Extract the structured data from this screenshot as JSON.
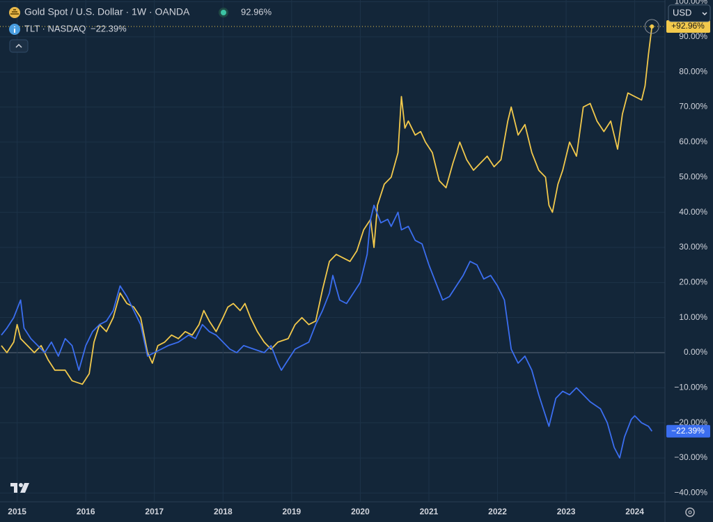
{
  "chart_data": {
    "type": "line",
    "currency": "USD",
    "series": [
      {
        "name": "Gold Spot / U.S. Dollar · 1W · OANDA",
        "color": "#f2c94c",
        "legend_value": "92.96%",
        "price_tag": "+92.96%",
        "x": [
          2014.77,
          2014.85,
          2014.95,
          2015.0,
          2015.05,
          2015.15,
          2015.25,
          2015.35,
          2015.45,
          2015.55,
          2015.7,
          2015.8,
          2015.95,
          2016.05,
          2016.12,
          2016.2,
          2016.3,
          2016.4,
          2016.5,
          2016.6,
          2016.7,
          2016.8,
          2016.9,
          2016.97,
          2017.05,
          2017.15,
          2017.25,
          2017.35,
          2017.45,
          2017.55,
          2017.65,
          2017.72,
          2017.8,
          2017.9,
          2018.0,
          2018.07,
          2018.15,
          2018.25,
          2018.32,
          2018.4,
          2018.5,
          2018.6,
          2018.7,
          2018.8,
          2018.95,
          2019.05,
          2019.15,
          2019.25,
          2019.35,
          2019.45,
          2019.55,
          2019.65,
          2019.75,
          2019.85,
          2019.95,
          2020.05,
          2020.15,
          2020.2,
          2020.25,
          2020.35,
          2020.45,
          2020.55,
          2020.6,
          2020.65,
          2020.7,
          2020.8,
          2020.88,
          2020.95,
          2021.05,
          2021.15,
          2021.25,
          2021.35,
          2021.45,
          2021.55,
          2021.65,
          2021.75,
          2021.85,
          2021.95,
          2022.05,
          2022.15,
          2022.2,
          2022.3,
          2022.4,
          2022.5,
          2022.6,
          2022.7,
          2022.75,
          2022.8,
          2022.88,
          2022.95,
          2023.05,
          2023.15,
          2023.25,
          2023.35,
          2023.45,
          2023.55,
          2023.65,
          2023.75,
          2023.82,
          2023.9,
          2024.0,
          2024.1,
          2024.15,
          2024.2,
          2024.25
        ],
        "values": [
          2,
          0,
          3,
          8,
          4,
          2,
          0,
          2,
          -2,
          -5,
          -5,
          -8,
          -9,
          -6,
          3,
          8,
          6,
          10,
          17,
          14,
          13,
          10,
          0,
          -3,
          2,
          3,
          5,
          4,
          6,
          5,
          8,
          12,
          9,
          6,
          10,
          13,
          14,
          12,
          14,
          10,
          6,
          3,
          1,
          3,
          4,
          8,
          10,
          8,
          9,
          18,
          26,
          28,
          27,
          26,
          29,
          35,
          38,
          30,
          42,
          48,
          50,
          57,
          73,
          64,
          66,
          62,
          63,
          60,
          57,
          49,
          47,
          54,
          60,
          55,
          52,
          54,
          56,
          53,
          55,
          66,
          70,
          62,
          65,
          57,
          52,
          50,
          42,
          40,
          48,
          52,
          60,
          56,
          70,
          71,
          66,
          63,
          66,
          58,
          68,
          74,
          73,
          72,
          76,
          85,
          92.96
        ]
      },
      {
        "name": "TLT · NASDAQ",
        "color": "#3b6ef0",
        "legend_value": "−22.39%",
        "price_tag": "−22.39%",
        "x": [
          2014.77,
          2014.85,
          2014.95,
          2015.05,
          2015.1,
          2015.2,
          2015.3,
          2015.4,
          2015.5,
          2015.6,
          2015.7,
          2015.8,
          2015.9,
          2016.0,
          2016.1,
          2016.2,
          2016.3,
          2016.4,
          2016.5,
          2016.6,
          2016.7,
          2016.8,
          2016.9,
          2017.0,
          2017.1,
          2017.2,
          2017.35,
          2017.5,
          2017.6,
          2017.7,
          2017.8,
          2017.9,
          2018.0,
          2018.1,
          2018.2,
          2018.3,
          2018.45,
          2018.6,
          2018.7,
          2018.8,
          2018.85,
          2018.95,
          2019.05,
          2019.15,
          2019.25,
          2019.35,
          2019.45,
          2019.55,
          2019.6,
          2019.7,
          2019.8,
          2019.9,
          2020.0,
          2020.1,
          2020.15,
          2020.2,
          2020.3,
          2020.4,
          2020.45,
          2020.55,
          2020.6,
          2020.7,
          2020.8,
          2020.9,
          2021.0,
          2021.1,
          2021.2,
          2021.3,
          2021.4,
          2021.5,
          2021.6,
          2021.7,
          2021.8,
          2021.9,
          2022.0,
          2022.1,
          2022.2,
          2022.3,
          2022.4,
          2022.5,
          2022.6,
          2022.75,
          2022.85,
          2022.95,
          2023.05,
          2023.15,
          2023.25,
          2023.35,
          2023.5,
          2023.6,
          2023.7,
          2023.78,
          2023.85,
          2023.95,
          2024.0,
          2024.1,
          2024.2,
          2024.25
        ],
        "values": [
          5,
          7,
          10,
          15,
          7,
          4,
          2,
          0,
          3,
          -1,
          4,
          2,
          -5,
          2,
          6,
          8,
          9,
          12,
          19,
          16,
          12,
          8,
          -1,
          0,
          1,
          2,
          3,
          5,
          4,
          8,
          6,
          5,
          3,
          1,
          0,
          2,
          1,
          0,
          2,
          -3,
          -5,
          -2,
          1,
          2,
          3,
          8,
          12,
          17,
          22,
          15,
          14,
          17,
          20,
          28,
          38,
          42,
          37,
          38,
          36,
          40,
          35,
          36,
          32,
          31,
          25,
          20,
          15,
          16,
          19,
          22,
          26,
          25,
          21,
          22,
          19,
          15,
          1,
          -3,
          -1,
          -5,
          -12,
          -21,
          -13,
          -11,
          -12,
          -10,
          -12,
          -14,
          -16,
          -20,
          -27,
          -30,
          -24,
          -19,
          -18,
          -20,
          -21,
          -22.39
        ]
      }
    ],
    "xlim": [
      2014.75,
      2024.44
    ],
    "xticks": [
      2015,
      2016,
      2017,
      2018,
      2019,
      2020,
      2021,
      2022,
      2023,
      2024
    ],
    "ylim": [
      -42.5,
      100.5
    ],
    "yticks": [
      {
        "value": 100,
        "label": "100.00%"
      },
      {
        "value": 90,
        "label": "90.00%"
      },
      {
        "value": 80,
        "label": "80.00%"
      },
      {
        "value": 70,
        "label": "70.00%"
      },
      {
        "value": 60,
        "label": "60.00%"
      },
      {
        "value": 50,
        "label": "50.00%"
      },
      {
        "value": 40,
        "label": "40.00%"
      },
      {
        "value": 30,
        "label": "30.00%"
      },
      {
        "value": 20,
        "label": "20.00%"
      },
      {
        "value": 10,
        "label": "10.00%"
      },
      {
        "value": 0,
        "label": "0.00%"
      },
      {
        "value": -10,
        "label": "−10.00%"
      },
      {
        "value": -20,
        "label": "−20.00%"
      },
      {
        "value": -30,
        "label": "−30.00%"
      },
      {
        "value": -40,
        "label": "−40.00%"
      }
    ],
    "grid": true
  }
}
